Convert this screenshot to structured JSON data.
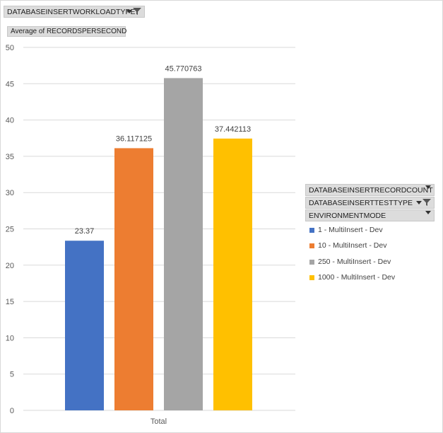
{
  "filter_field": {
    "label": "DATABASEINSERTWORKLOADTYPE"
  },
  "value_field": {
    "label": "Average of RECORDSPERSECOND"
  },
  "legend_fields": [
    {
      "label": "DATABASEINSERTRECORDCOUNT",
      "filter": false
    },
    {
      "label": "DATABASEINSERTTESTTYPE",
      "filter": true
    },
    {
      "label": "ENVIRONMENTMODE",
      "filter": false
    }
  ],
  "chart_data": {
    "type": "bar",
    "categories": [
      "Total"
    ],
    "series": [
      {
        "name": "1 - MultiInsert - Dev",
        "values": [
          23.37
        ],
        "label": "23.37",
        "color": "#4472c4"
      },
      {
        "name": "10 - MultiInsert - Dev",
        "values": [
          36.117125
        ],
        "label": "36.117125",
        "color": "#ed7d31"
      },
      {
        "name": "250 - MultiInsert - Dev",
        "values": [
          45.770763
        ],
        "label": "45.770763",
        "color": "#a5a5a5"
      },
      {
        "name": "1000 - MultiInsert - Dev",
        "values": [
          37.442113
        ],
        "label": "37.442113",
        "color": "#ffc000"
      }
    ],
    "ylim": [
      0,
      50
    ],
    "yticks": [
      "0",
      "5",
      "10",
      "15",
      "20",
      "25",
      "30",
      "35",
      "40",
      "45",
      "50"
    ],
    "grid": true,
    "legend_position": "right"
  }
}
